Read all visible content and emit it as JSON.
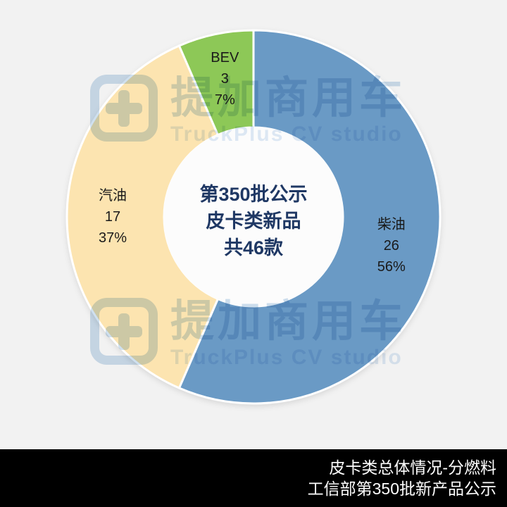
{
  "background_color": "#F2F2F2",
  "chart_data": {
    "type": "pie",
    "subtype": "donut",
    "title_center": [
      "第350批公示",
      "皮卡类新品",
      "共46款"
    ],
    "categories": [
      "柴油",
      "汽油",
      "BEV"
    ],
    "values": [
      26,
      17,
      3
    ],
    "percent_labels": [
      "56%",
      "37%",
      "7%"
    ],
    "total": 46,
    "colors": [
      "#6A9AC5",
      "#FCE4B0",
      "#8DC857"
    ],
    "slice_border_color": "#FFFFFF",
    "hole_color": "#FCFCFC",
    "start_angle_deg": 0,
    "direction": "clockwise",
    "legend": "none",
    "center_text_color": "#1F3864",
    "label_text_color": "#1A1A1A"
  },
  "watermark": {
    "brand_cn": "提加商用车",
    "brand_en": "TruckPlus CV studio"
  },
  "footer": {
    "line1": "皮卡类总体情况-分燃料",
    "line2": "工信部第350批新产品公示",
    "bg_color": "#000000",
    "text_color": "#FFFFFF"
  }
}
